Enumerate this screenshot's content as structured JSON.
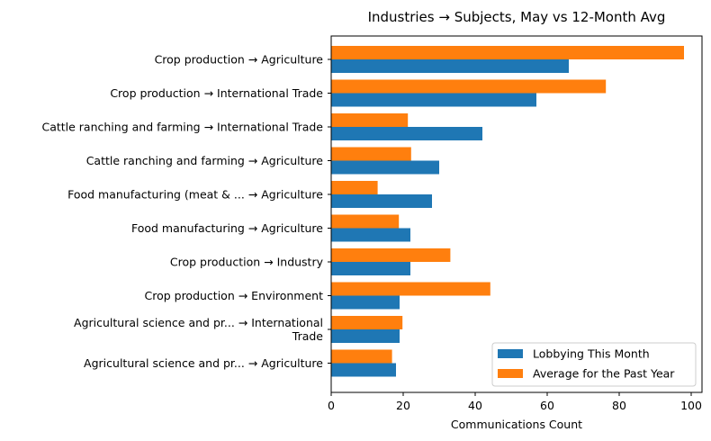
{
  "chart_data": {
    "type": "bar",
    "orientation": "horizontal",
    "title": "Industries → Subjects, May vs 12-Month Avg",
    "xlabel": "Communications Count",
    "ylabel": "",
    "xlim": [
      0,
      103
    ],
    "xticks": [
      0,
      20,
      40,
      60,
      80,
      100
    ],
    "grid": false,
    "legend_position": "lower-right",
    "categories": [
      [
        "Crop production → Agriculture"
      ],
      [
        "Crop production → International Trade"
      ],
      [
        "Cattle ranching and farming → International Trade"
      ],
      [
        "Cattle ranching and farming → Agriculture"
      ],
      [
        "Food manufacturing (meat & ... → Agriculture"
      ],
      [
        "Food manufacturing → Agriculture"
      ],
      [
        "Crop production → Industry"
      ],
      [
        "Crop production → Environment"
      ],
      [
        "Agricultural science and pr... → International",
        "Trade"
      ],
      [
        "Agricultural science and pr... → Agriculture"
      ]
    ],
    "series": [
      {
        "name": "Lobbying This Month",
        "color": "#1f77b4",
        "values": [
          66,
          57,
          42,
          30,
          28,
          22,
          22,
          19,
          19,
          18
        ]
      },
      {
        "name": "Average for the Past Year",
        "color": "#ff7f0e",
        "values": [
          98,
          76.3,
          21.3,
          22.2,
          12.9,
          18.8,
          33.1,
          44.2,
          19.8,
          16.9
        ]
      }
    ]
  }
}
